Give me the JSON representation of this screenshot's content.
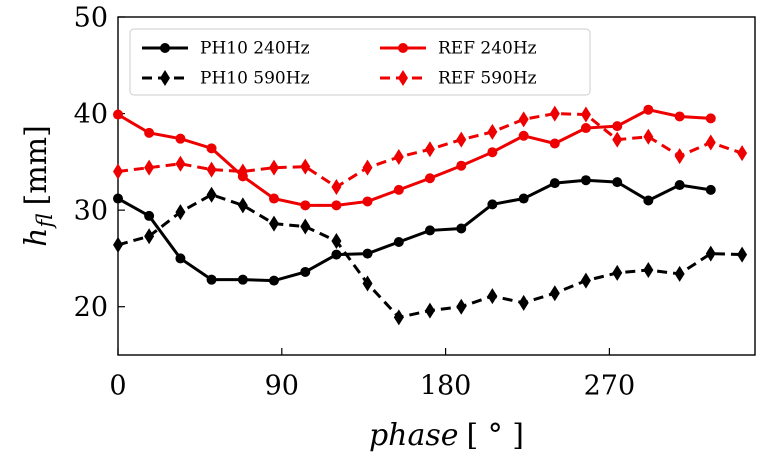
{
  "chart_data": {
    "type": "line",
    "ylabel": {
      "symbol": "h",
      "subscript": "fl",
      "unit": "[mm]"
    },
    "xlabel": {
      "symbol": "phase",
      "unit": "[ ° ]"
    },
    "x": [
      0,
      17.1,
      34.3,
      51.4,
      68.6,
      85.7,
      102.9,
      120,
      137.1,
      154.3,
      171.4,
      188.6,
      205.7,
      222.9,
      240,
      257.1,
      274.3,
      291.4,
      308.6,
      325.7,
      342.9
    ],
    "series": [
      {
        "name": "PH10 240Hz",
        "color": "#000000",
        "marker": "circle",
        "dashed": false,
        "values": [
          31.2,
          29.4,
          25.0,
          22.8,
          22.8,
          22.7,
          23.6,
          25.4,
          25.5,
          26.7,
          27.9,
          28.1,
          30.6,
          31.2,
          32.8,
          33.1,
          32.9,
          31.0,
          32.6,
          32.1,
          null
        ]
      },
      {
        "name": "PH10 590Hz",
        "color": "#000000",
        "marker": "diamond",
        "dashed": true,
        "values": [
          26.4,
          27.3,
          29.8,
          31.6,
          30.5,
          28.6,
          28.3,
          26.8,
          22.4,
          18.9,
          19.6,
          20.0,
          21.1,
          20.4,
          21.4,
          22.7,
          23.5,
          23.8,
          23.4,
          25.5,
          25.4
        ]
      },
      {
        "name": "REF 240Hz",
        "color": "#ee0000",
        "marker": "circle",
        "dashed": false,
        "values": [
          39.9,
          38.0,
          37.4,
          36.4,
          33.5,
          31.2,
          30.5,
          30.5,
          30.9,
          32.1,
          33.3,
          34.6,
          36.0,
          37.7,
          36.9,
          38.5,
          38.7,
          40.4,
          39.7,
          39.5,
          null
        ]
      },
      {
        "name": "REF 590Hz",
        "color": "#ee0000",
        "marker": "diamond",
        "dashed": true,
        "values": [
          34.0,
          34.4,
          34.8,
          34.2,
          34.0,
          34.4,
          34.5,
          32.4,
          34.4,
          35.5,
          36.3,
          37.3,
          38.1,
          39.4,
          40.0,
          39.9,
          37.3,
          37.6,
          35.6,
          37.0,
          35.9
        ]
      }
    ],
    "xlim": [
      0,
      350
    ],
    "xticks": [
      0,
      90,
      180,
      270
    ],
    "ylim": [
      15,
      50
    ],
    "yticks": [
      20,
      30,
      40,
      50
    ],
    "legend": "upper left",
    "grid": false
  }
}
